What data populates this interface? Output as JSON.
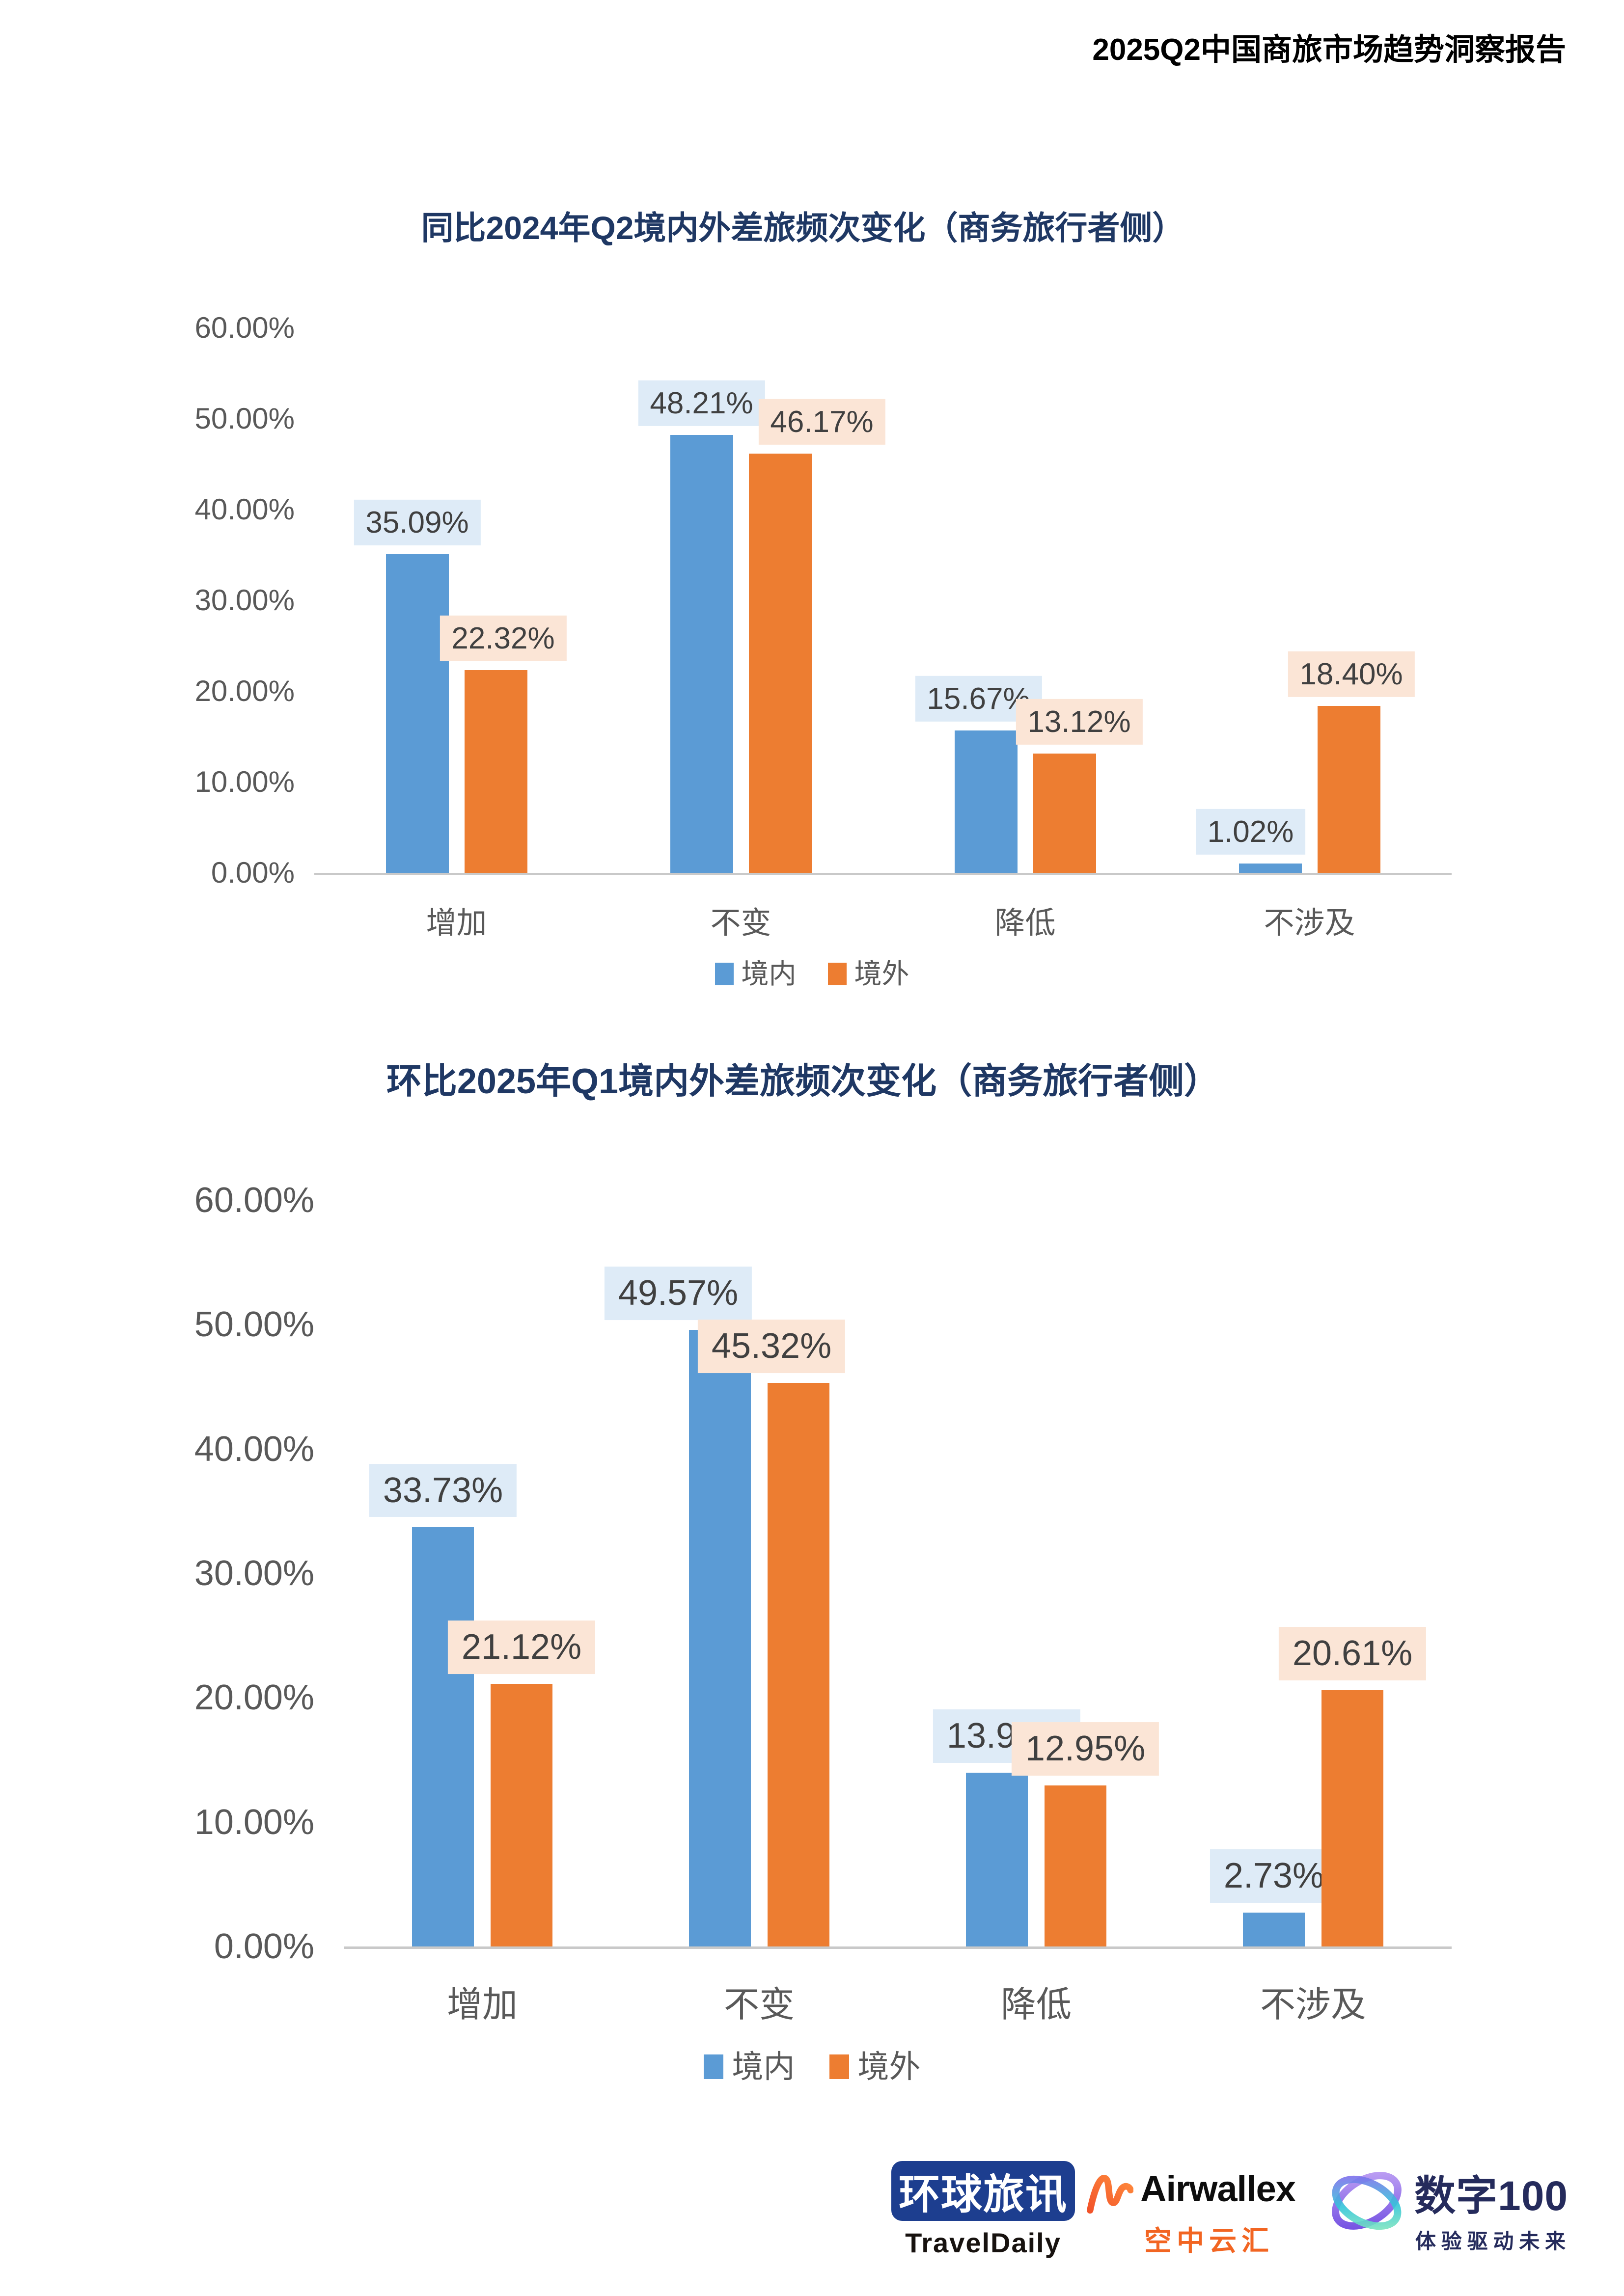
{
  "header": {
    "title": "2025Q2中国商旅市场趋势洞察报告"
  },
  "chart_data": [
    {
      "type": "bar",
      "title": "同比2024年Q2境内外差旅频次变化（商务旅行者侧）",
      "categories": [
        "增加",
        "不变",
        "降低",
        "不涉及"
      ],
      "series": [
        {
          "name": "境内",
          "color": "#5B9BD5",
          "label_bg": "#DEEBF7",
          "values": [
            35.09,
            48.21,
            15.67,
            1.02
          ]
        },
        {
          "name": "境外",
          "color": "#ED7D31",
          "label_bg": "#FBE5D6",
          "values": [
            22.32,
            46.17,
            13.12,
            18.4
          ]
        }
      ],
      "value_suffix": "%",
      "ylim": [
        0,
        60
      ],
      "ytick_step": 10,
      "ytick_labels": [
        "0.00%",
        "10.00%",
        "20.00%",
        "30.00%",
        "40.00%",
        "50.00%",
        "60.00%"
      ],
      "grid": false,
      "legend_position": "bottom",
      "title_color": "#1F3864",
      "axis_text_color": "#595959",
      "label_text_color": "#404040"
    },
    {
      "type": "bar",
      "title": "环比2025年Q1境内外差旅频次变化（商务旅行者侧）",
      "categories": [
        "增加",
        "不变",
        "降低",
        "不涉及"
      ],
      "series": [
        {
          "name": "境内",
          "color": "#5B9BD5",
          "label_bg": "#DEEBF7",
          "values": [
            33.73,
            49.57,
            13.97,
            2.73
          ]
        },
        {
          "name": "境外",
          "color": "#ED7D31",
          "label_bg": "#FBE5D6",
          "values": [
            21.12,
            45.32,
            12.95,
            20.61
          ]
        }
      ],
      "value_suffix": "%",
      "ylim": [
        0,
        60
      ],
      "ytick_step": 10,
      "ytick_labels": [
        "0.00%",
        "10.00%",
        "20.00%",
        "30.00%",
        "40.00%",
        "50.00%",
        "60.00%"
      ],
      "grid": false,
      "legend_position": "bottom",
      "title_color": "#1F3864",
      "axis_text_color": "#595959",
      "label_text_color": "#404040"
    }
  ],
  "footer": {
    "traveldaily": {
      "zh": "环球旅讯",
      "en": "TravelDaily",
      "box_color": "#1D3E8F"
    },
    "airwallex": {
      "en": "Airwallex",
      "zh": "空中云汇",
      "accent": "#F26522"
    },
    "shuzi100": {
      "title": "数字100",
      "tagline": "体验驱动未来",
      "color": "#252B5C"
    }
  }
}
